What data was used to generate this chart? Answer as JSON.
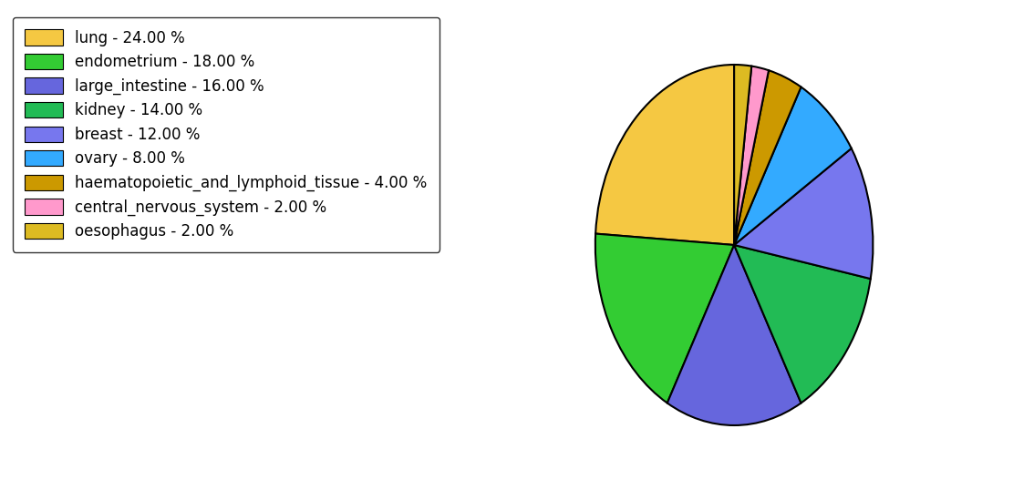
{
  "labels": [
    "lung",
    "endometrium",
    "large_intestine",
    "kidney",
    "breast",
    "ovary",
    "haematopoietic_and_lymphoid_tissue",
    "central_nervous_system",
    "oesophagus"
  ],
  "values": [
    24,
    18,
    16,
    14,
    12,
    8,
    4,
    2,
    2
  ],
  "colors": [
    "#F5C842",
    "#33CC33",
    "#6666DD",
    "#22BB55",
    "#7777EE",
    "#33AAFF",
    "#CC9900",
    "#FF99CC",
    "#DDBB22"
  ],
  "legend_labels": [
    "lung - 24.00 %",
    "endometrium - 18.00 %",
    "large_intestine - 16.00 %",
    "kidney - 14.00 %",
    "breast - 12.00 %",
    "ovary - 8.00 %",
    "haematopoietic_and_lymphoid_tissue - 4.00 %",
    "central_nervous_system - 2.00 %",
    "oesophagus - 2.00 %"
  ],
  "figsize": [
    11.34,
    5.38
  ],
  "dpi": 100,
  "startangle": 90,
  "legend_fontsize": 12,
  "edgecolor": "black",
  "linewidth": 1.5
}
